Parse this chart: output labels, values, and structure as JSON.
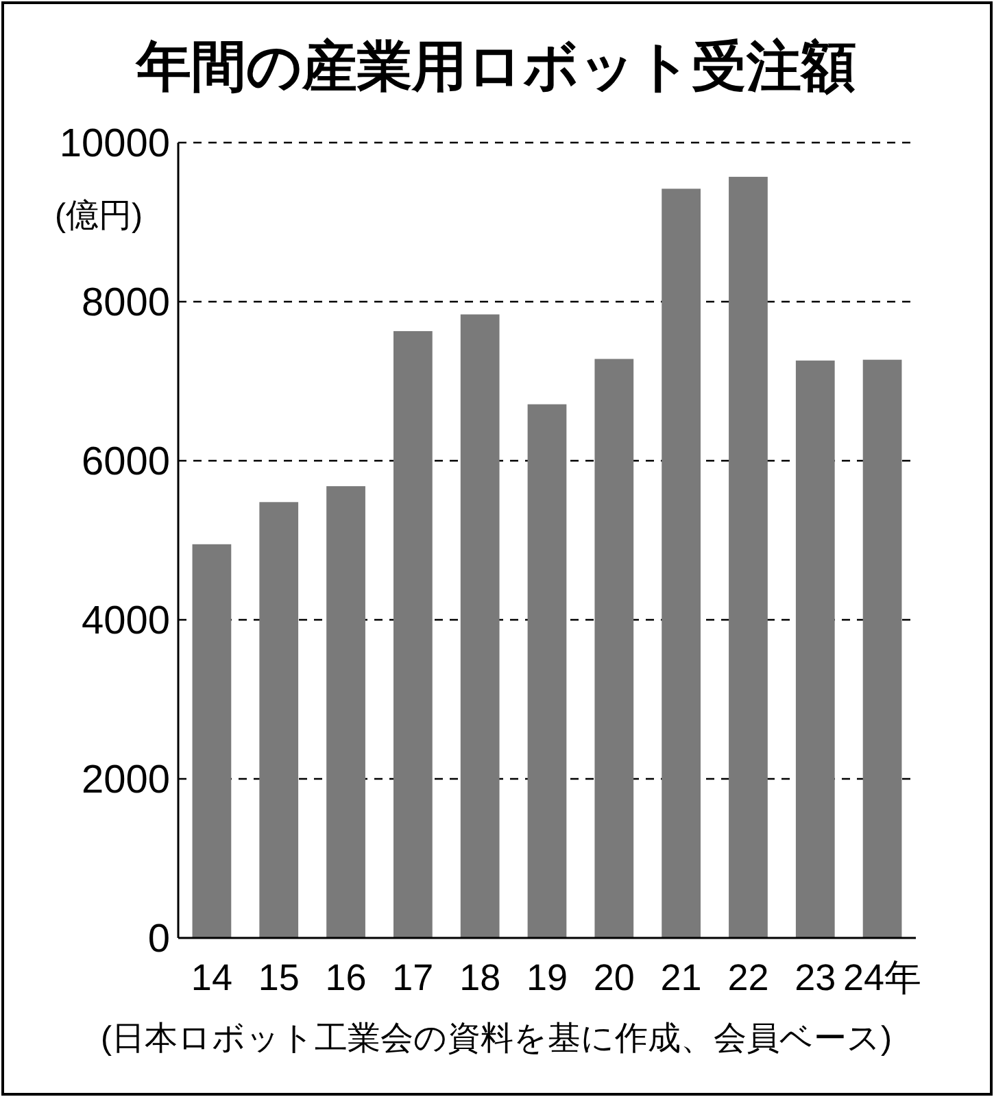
{
  "chart_data": {
    "type": "bar",
    "title": "年間の産業用ロボット受注額",
    "ylabel": "(億円)",
    "categories": [
      "14",
      "15",
      "16",
      "17",
      "18",
      "19",
      "20",
      "21",
      "22",
      "23",
      "24年"
    ],
    "series": [
      {
        "color": "#7a7a7a",
        "values": [
          4950,
          5480,
          5680,
          7630,
          7840,
          6710,
          7280,
          9420,
          9570,
          7260,
          7270
        ]
      }
    ],
    "ylim": [
      0,
      10000
    ],
    "yticks": [
      0,
      2000,
      4000,
      6000,
      8000,
      10000
    ],
    "grid": "y",
    "annotations": [
      "(日本ロボット工業会の資料を基に作成、会員ベース)"
    ]
  }
}
